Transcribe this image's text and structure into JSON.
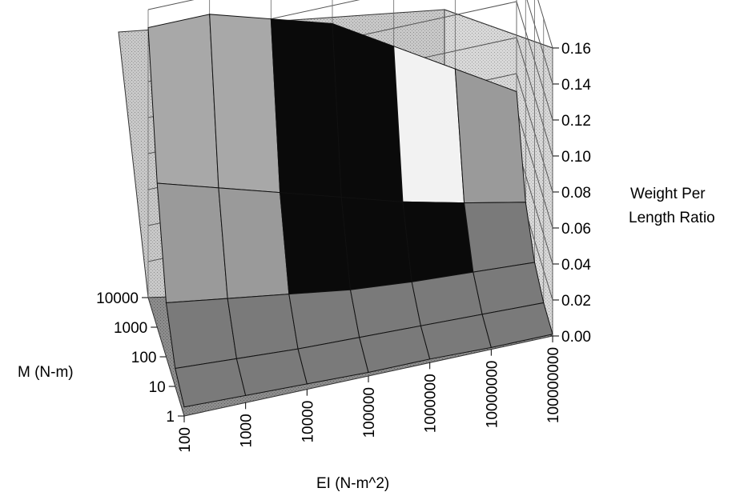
{
  "chart_data": {
    "type": "surface3d",
    "x": {
      "label": "EI (N-m^2)",
      "ticks": [
        "100",
        "1000",
        "10000",
        "100000",
        "1000000",
        "10000000",
        "100000000"
      ],
      "scale": "log"
    },
    "y": {
      "label": "M (N-m)",
      "ticks": [
        "1",
        "10",
        "100",
        "1000",
        "10000"
      ],
      "scale": "log"
    },
    "z": {
      "label": [
        "Weight Per",
        "Length Ratio"
      ],
      "ticks": [
        "0.00",
        "0.02",
        "0.04",
        "0.06",
        "0.08",
        "0.10",
        "0.12",
        "0.14",
        "0.16"
      ],
      "zlim": [
        0,
        0.16
      ]
    },
    "grid": true,
    "bands": [
      {
        "range": [
          0.0,
          0.02
        ],
        "color": "#7a7a7a"
      },
      {
        "range": [
          0.02,
          0.04
        ],
        "color": "#0a0a0a"
      },
      {
        "range": [
          0.04,
          0.06
        ],
        "color": "#9a9a9a"
      },
      {
        "range": [
          0.06,
          0.08
        ],
        "color": "#f2f2f2"
      },
      {
        "range": [
          0.08,
          0.1
        ],
        "color": "#0a0a0a"
      },
      {
        "range": [
          0.1,
          0.12
        ],
        "color": "#a8a8a8"
      },
      {
        "range": [
          0.12,
          0.14
        ],
        "color": "#0a0a0a"
      },
      {
        "range": [
          0.14,
          0.16
        ],
        "color": "#f4f4f4"
      }
    ],
    "surface_rows": [
      {
        "m": "1",
        "values": [
          0.005,
          0.004,
          0.003,
          0.002,
          0.002,
          0.001,
          0.001
        ]
      },
      {
        "m": "10",
        "values": [
          0.01,
          0.008,
          0.006,
          0.005,
          0.004,
          0.003,
          0.002
        ]
      },
      {
        "m": "100",
        "values": [
          0.03,
          0.025,
          0.02,
          0.015,
          0.012,
          0.01,
          0.008
        ]
      },
      {
        "m": "1000",
        "values": [
          0.08,
          0.07,
          0.06,
          0.05,
          0.04,
          0.032,
          0.025
        ]
      },
      {
        "m": "10000",
        "values": [
          0.15,
          0.15,
          0.14,
          0.13,
          0.11,
          0.09,
          0.07
        ]
      }
    ]
  }
}
